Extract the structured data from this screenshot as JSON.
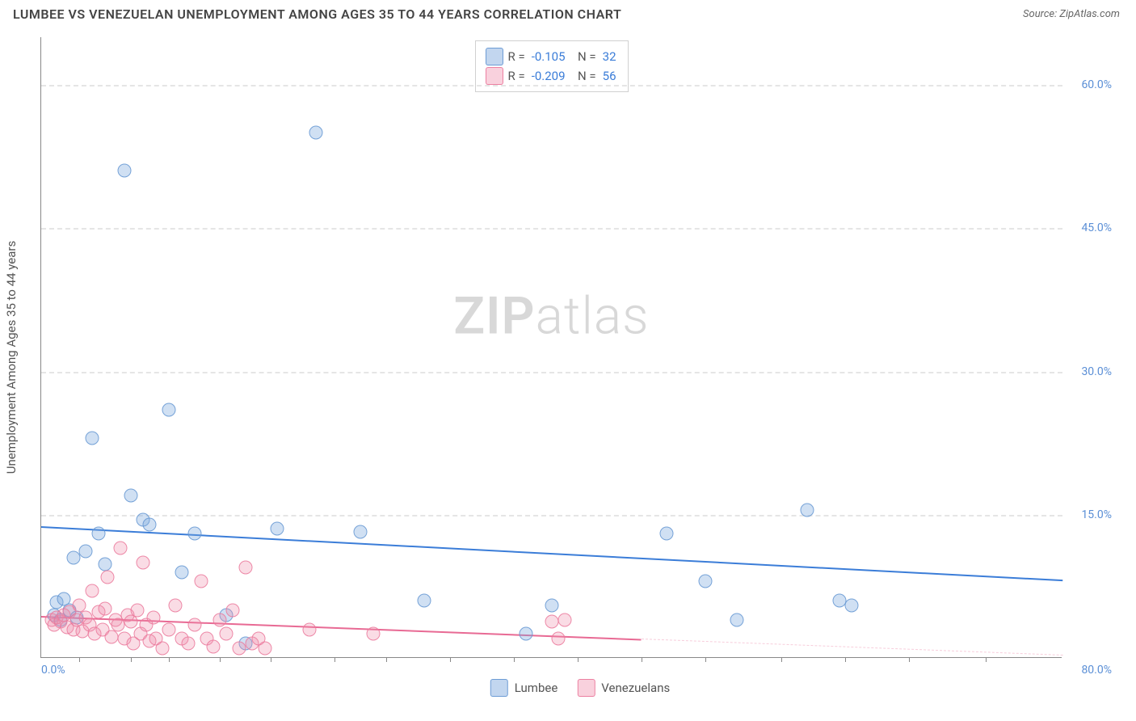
{
  "header": {
    "title": "LUMBEE VS VENEZUELAN UNEMPLOYMENT AMONG AGES 35 TO 44 YEARS CORRELATION CHART",
    "source": "Source: ZipAtlas.com"
  },
  "chart": {
    "type": "scatter",
    "y_axis_title": "Unemployment Among Ages 35 to 44 years",
    "watermark": "ZIPatlas",
    "xlim": [
      0,
      80
    ],
    "ylim": [
      0,
      65
    ],
    "x_ticks": [
      0,
      80
    ],
    "x_tick_labels": [
      "0.0%",
      "80.0%"
    ],
    "x_minor_ticks": [
      3,
      7,
      10,
      14,
      18,
      23,
      27,
      32,
      37,
      42,
      47,
      52,
      58,
      63,
      68,
      74
    ],
    "y_ticks": [
      15,
      30,
      45,
      60
    ],
    "y_tick_labels": [
      "15.0%",
      "30.0%",
      "45.0%",
      "60.0%"
    ],
    "background_color": "#ffffff",
    "grid_color": "#e5e5e5",
    "axis_color": "#888888",
    "label_color": "#5b8fd6",
    "series": [
      {
        "name": "Lumbee",
        "color_fill": "rgba(120,165,220,0.35)",
        "color_stroke": "rgba(100,150,210,0.85)",
        "marker_size": 17,
        "R": "-0.105",
        "N": "32",
        "trend": {
          "x0": 0,
          "y0": 13.8,
          "x1": 80,
          "y1": 8.2,
          "color": "#3b7dd8",
          "dash_from_x": null
        },
        "points": [
          [
            1.0,
            4.5
          ],
          [
            1.2,
            5.8
          ],
          [
            1.5,
            4.0
          ],
          [
            1.8,
            6.2
          ],
          [
            2.2,
            5.0
          ],
          [
            2.5,
            10.5
          ],
          [
            2.8,
            4.2
          ],
          [
            3.5,
            11.2
          ],
          [
            4.0,
            23.0
          ],
          [
            4.5,
            13.0
          ],
          [
            5.0,
            9.8
          ],
          [
            6.5,
            51.0
          ],
          [
            7.0,
            17.0
          ],
          [
            8.0,
            14.5
          ],
          [
            8.5,
            14.0
          ],
          [
            10.0,
            26.0
          ],
          [
            11.0,
            9.0
          ],
          [
            12.0,
            13.0
          ],
          [
            14.5,
            4.5
          ],
          [
            16.0,
            1.5
          ],
          [
            18.5,
            13.5
          ],
          [
            21.5,
            55.0
          ],
          [
            25.0,
            13.2
          ],
          [
            30.0,
            6.0
          ],
          [
            38.0,
            2.5
          ],
          [
            40.0,
            5.5
          ],
          [
            49.0,
            13.0
          ],
          [
            52.0,
            8.0
          ],
          [
            54.5,
            4.0
          ],
          [
            60.0,
            15.5
          ],
          [
            62.5,
            6.0
          ],
          [
            63.5,
            5.5
          ]
        ]
      },
      {
        "name": "Venezuelans",
        "color_fill": "rgba(240,140,170,0.30)",
        "color_stroke": "rgba(235,120,155,0.85)",
        "marker_size": 17,
        "R": "-0.209",
        "N": "56",
        "trend": {
          "x0": 0,
          "y0": 4.4,
          "x1": 80,
          "y1": 0.3,
          "color": "#e86a94",
          "dash_from_x": 47
        },
        "points": [
          [
            0.8,
            4.0
          ],
          [
            1.0,
            3.5
          ],
          [
            1.2,
            4.2
          ],
          [
            1.5,
            3.8
          ],
          [
            1.8,
            4.5
          ],
          [
            2.0,
            3.2
          ],
          [
            2.2,
            4.8
          ],
          [
            2.5,
            3.0
          ],
          [
            2.8,
            4.0
          ],
          [
            3.0,
            5.5
          ],
          [
            3.2,
            2.8
          ],
          [
            3.5,
            4.2
          ],
          [
            3.8,
            3.5
          ],
          [
            4.0,
            7.0
          ],
          [
            4.2,
            2.5
          ],
          [
            4.5,
            4.8
          ],
          [
            4.8,
            3.0
          ],
          [
            5.0,
            5.2
          ],
          [
            5.2,
            8.5
          ],
          [
            5.5,
            2.2
          ],
          [
            5.8,
            4.0
          ],
          [
            6.0,
            3.5
          ],
          [
            6.2,
            11.5
          ],
          [
            6.5,
            2.0
          ],
          [
            6.8,
            4.5
          ],
          [
            7.0,
            3.8
          ],
          [
            7.2,
            1.5
          ],
          [
            7.5,
            5.0
          ],
          [
            7.8,
            2.5
          ],
          [
            8.0,
            10.0
          ],
          [
            8.2,
            3.5
          ],
          [
            8.5,
            1.8
          ],
          [
            8.8,
            4.2
          ],
          [
            9.0,
            2.0
          ],
          [
            9.5,
            1.0
          ],
          [
            10.0,
            3.0
          ],
          [
            10.5,
            5.5
          ],
          [
            11.0,
            2.0
          ],
          [
            11.5,
            1.5
          ],
          [
            12.0,
            3.5
          ],
          [
            12.5,
            8.0
          ],
          [
            13.0,
            2.0
          ],
          [
            13.5,
            1.2
          ],
          [
            14.0,
            4.0
          ],
          [
            14.5,
            2.5
          ],
          [
            15.0,
            5.0
          ],
          [
            15.5,
            1.0
          ],
          [
            16.0,
            9.5
          ],
          [
            16.5,
            1.5
          ],
          [
            17.0,
            2.0
          ],
          [
            17.5,
            1.0
          ],
          [
            21.0,
            3.0
          ],
          [
            26.0,
            2.5
          ],
          [
            40.0,
            3.8
          ],
          [
            40.5,
            2.0
          ],
          [
            41.0,
            4.0
          ]
        ]
      }
    ],
    "bottom_legend": [
      "Lumbee",
      "Venezuelans"
    ]
  }
}
